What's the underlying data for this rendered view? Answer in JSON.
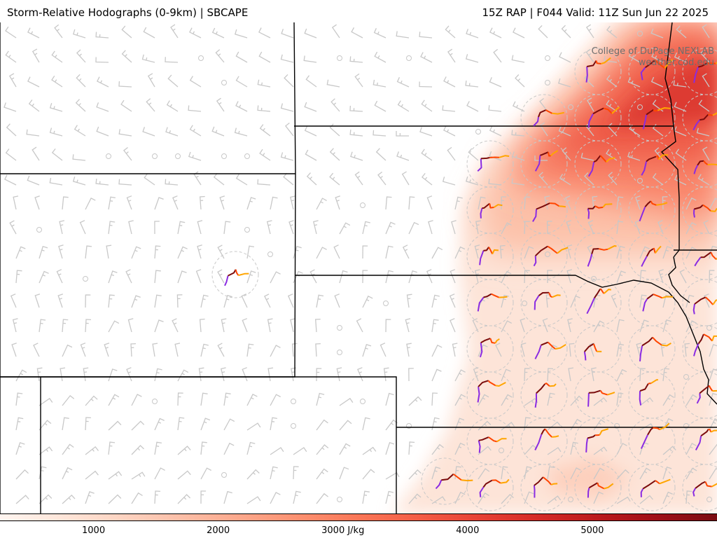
{
  "header": {
    "title": "Storm-Relative Hodographs (0-9km) | SBCAPE",
    "run_info": "15Z RAP | F044 Valid: 11Z Sun Jun 22 2025"
  },
  "credit": {
    "line1": "College of DuPage NEXLAB",
    "line2": "weather.cod.edu"
  },
  "colorbar": {
    "ticks": [
      {
        "value": 1000,
        "label": "1000"
      },
      {
        "value": 2000,
        "label": "2000"
      },
      {
        "value": 3000,
        "label": "3000 J/kg"
      },
      {
        "value": 4000,
        "label": "4000"
      },
      {
        "value": 5000,
        "label": "5000"
      }
    ],
    "min": 250,
    "max": 6000,
    "colors": [
      "#fff5f0",
      "#fee6da",
      "#fdd4c2",
      "#fcbfa8",
      "#fca88c",
      "#fc9070",
      "#fa7657",
      "#f45d45",
      "#e74235",
      "#d52a26",
      "#bb1a1c",
      "#9f0f17",
      "#7a0c12"
    ]
  },
  "hodograph_colors": [
    "#8a2be2",
    "#7a0c0c",
    "#ff4500",
    "#ffa500"
  ],
  "barb_color": "#c8c8c8",
  "border_color": "#000000"
}
